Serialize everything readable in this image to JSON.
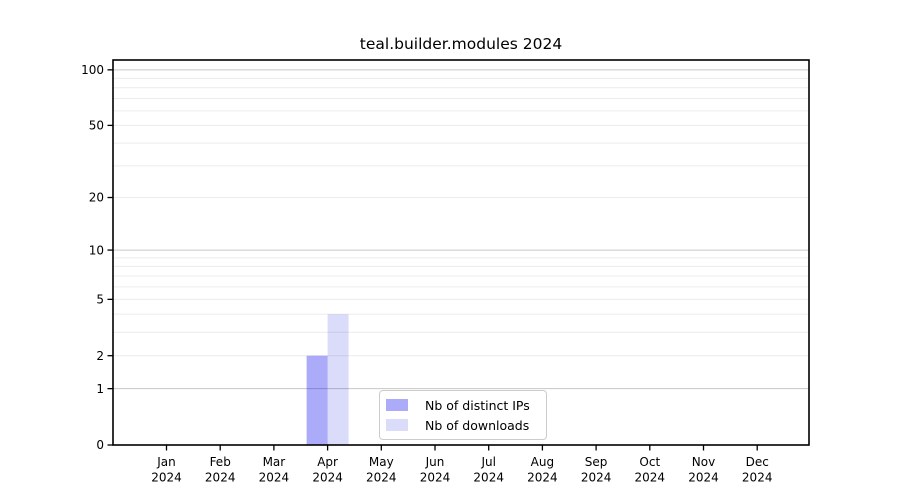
{
  "chart_data": {
    "type": "bar",
    "title": "teal.builder.modules 2024",
    "x_axis": {
      "months": [
        "Jan",
        "Feb",
        "Mar",
        "Apr",
        "May",
        "Jun",
        "Jul",
        "Aug",
        "Sep",
        "Oct",
        "Nov",
        "Dec"
      ],
      "year": "2024"
    },
    "series": [
      {
        "name": "Nb of distinct IPs",
        "color_hex": "#aaaaf9",
        "color_rgba": "rgba(0,0,240,0.33)",
        "values": [
          0,
          0,
          0,
          2,
          0,
          0,
          0,
          0,
          0,
          0,
          0,
          0
        ]
      },
      {
        "name": "Nb of downloads",
        "color_hex": "#dcdcf9",
        "color_rgba": "rgba(0,0,220,0.14)",
        "values": [
          0,
          0,
          0,
          4,
          0,
          0,
          0,
          0,
          0,
          0,
          0,
          0
        ]
      }
    ],
    "y_axis": {
      "scale": "log1p",
      "tick_labels": [
        0,
        1,
        2,
        5,
        10,
        20,
        50,
        100
      ],
      "major_gridlines": [
        1,
        10,
        100
      ],
      "minor_gridlines": [
        2,
        3,
        4,
        5,
        6,
        7,
        8,
        9,
        20,
        30,
        40,
        50,
        60,
        70,
        80,
        90
      ],
      "ylim": [
        0,
        113
      ]
    },
    "legend_position": "bottom-center",
    "grid": true,
    "colors": {
      "grid_major": "#c7c7c7",
      "grid_minor": "#ececec",
      "spine": "#000000",
      "text": "#000000",
      "background": "#ffffff"
    }
  }
}
